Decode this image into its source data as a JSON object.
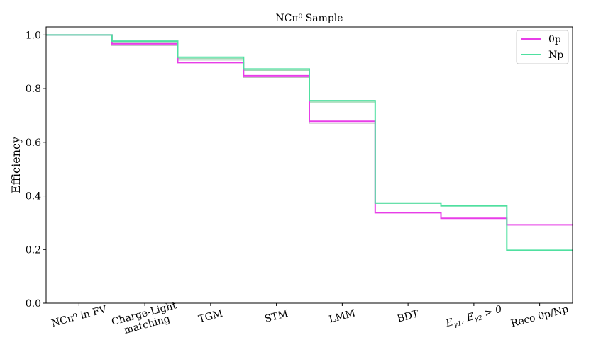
{
  "chart_data": {
    "type": "line",
    "title": "NCπ⁰ Sample",
    "xlabel": "",
    "ylabel": "Efficiency",
    "ylim": [
      0,
      1.03
    ],
    "yticks": [
      0.0,
      0.2,
      0.4,
      0.6,
      0.8,
      1.0
    ],
    "ytick_labels": [
      "0.0",
      "0.2",
      "0.4",
      "0.6",
      "0.8",
      "1.0"
    ],
    "categories": [
      {
        "text": "NCπ⁰ in FV"
      },
      {
        "text": "Charge-Light matching",
        "line1": "Charge-Light",
        "line2": "matching"
      },
      {
        "text": "TGM"
      },
      {
        "text": "STM"
      },
      {
        "text": "LMM"
      },
      {
        "text": "BDT"
      },
      {
        "text": "E_γ1, E_γ2 > 0",
        "math": true
      },
      {
        "text": "Reco 0p/Np"
      }
    ],
    "grid": false,
    "legend_position": "top-right",
    "series": [
      {
        "name": "0p",
        "color": "#e83ee8",
        "values": [
          1.0,
          0.967,
          0.897,
          0.848,
          0.678,
          0.337,
          0.316,
          0.292
        ]
      },
      {
        "name": "Np",
        "color": "#4fe0a0",
        "values": [
          1.0,
          0.977,
          0.917,
          0.873,
          0.755,
          0.373,
          0.363,
          0.197
        ]
      }
    ],
    "faint_series": [
      {
        "color": "#c0c0c0",
        "values": [
          1.0,
          0.961,
          0.907,
          0.842,
          0.671,
          0.337,
          0.316,
          0.292
        ]
      },
      {
        "color": "#9fd9b4",
        "values": [
          1.0,
          0.972,
          0.912,
          0.868,
          0.75,
          0.372,
          0.362,
          0.197
        ]
      }
    ]
  }
}
